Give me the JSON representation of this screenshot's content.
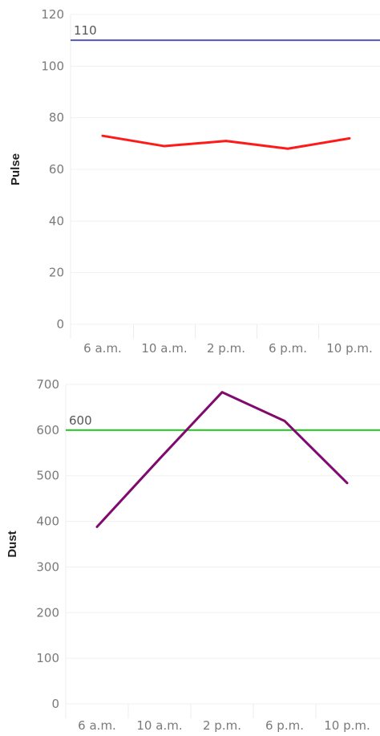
{
  "chart_data": [
    {
      "type": "line",
      "ylabel": "Pulse",
      "categories": [
        "6 a.m.",
        "10 a.m.",
        "2 p.m.",
        "6 p.m.",
        "10 p.m."
      ],
      "series": [
        {
          "values": [
            73,
            69,
            71,
            68,
            72
          ],
          "color": "#ff1a1a"
        }
      ],
      "yticks": [
        0,
        20,
        40,
        60,
        80,
        100,
        120
      ],
      "ylim": [
        0,
        120
      ],
      "grid": true,
      "reference_line": {
        "value": 110,
        "label": "110",
        "color": "#5555bb"
      }
    },
    {
      "type": "line",
      "ylabel": "Dust",
      "categories": [
        "6 a.m.",
        "10 a.m.",
        "2 p.m.",
        "6 p.m.",
        "10 p.m."
      ],
      "series": [
        {
          "values": [
            388,
            537,
            683,
            620,
            484
          ],
          "color": "#800a6e"
        }
      ],
      "yticks": [
        0,
        100,
        200,
        300,
        400,
        500,
        600,
        700
      ],
      "ylim": [
        0,
        700
      ],
      "grid": true,
      "reference_line": {
        "value": 600,
        "label": "600",
        "color": "#22cc22"
      }
    }
  ]
}
